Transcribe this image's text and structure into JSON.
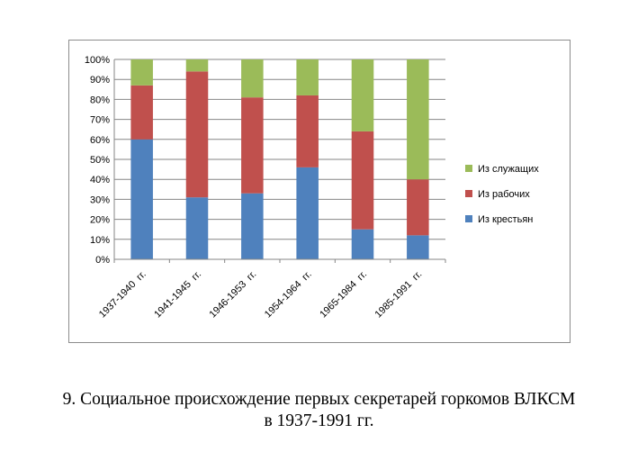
{
  "chart_data": {
    "type": "bar",
    "stacked": true,
    "percent": true,
    "categories": [
      "1937-1940  гг.",
      "1941-1945  гг.",
      "1946-1953  гг.",
      "1954-1964  гг.",
      "1965-1984  гг.",
      "1985-1991  гг."
    ],
    "series": [
      {
        "name": "Из крестьян",
        "color": "#4f81bd",
        "values": [
          60,
          31,
          33,
          46,
          15,
          12
        ]
      },
      {
        "name": "Из рабочих",
        "color": "#c0504d",
        "values": [
          27,
          63,
          48,
          36,
          49,
          28
        ]
      },
      {
        "name": "Из служащих",
        "color": "#9bbb59",
        "values": [
          13,
          6,
          19,
          18,
          36,
          60
        ]
      }
    ],
    "yticks": [
      "0%",
      "10%",
      "20%",
      "30%",
      "40%",
      "50%",
      "60%",
      "70%",
      "80%",
      "90%",
      "100%"
    ],
    "ylim": [
      0,
      100
    ],
    "grid": true,
    "legend_position": "right",
    "title": "",
    "xlabel": "",
    "ylabel": ""
  },
  "caption": {
    "line1": "9. Социальное происхождение первых секретарей горкомов ВЛКСМ",
    "line2": "в 1937-1991 гг."
  }
}
